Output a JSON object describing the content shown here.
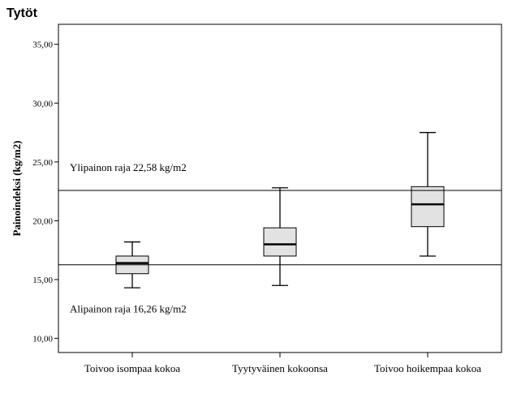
{
  "title": "Tytöt",
  "chart_data": {
    "type": "boxplot",
    "ylabel": "Painoindeksi (kg/m2)",
    "ylim": [
      8.8,
      36.7
    ],
    "yticks": [
      "10,00",
      "15,00",
      "20,00",
      "25,00",
      "30,00",
      "35,00"
    ],
    "ytick_values": [
      10,
      15,
      20,
      25,
      30,
      35
    ],
    "categories": [
      "Toivoo isompaa kokoa",
      "Tyytyväinen kokoonsa",
      "Toivoo hoikempaa kokoa"
    ],
    "boxes": [
      {
        "whisker_low": 14.3,
        "q1": 15.5,
        "median": 16.4,
        "q3": 17.0,
        "whisker_high": 18.2
      },
      {
        "whisker_low": 14.5,
        "q1": 17.0,
        "median": 18.0,
        "q3": 19.4,
        "whisker_high": 22.8
      },
      {
        "whisker_low": 17.0,
        "q1": 19.5,
        "median": 21.4,
        "q3": 22.9,
        "whisker_high": 27.5
      }
    ],
    "reference_lines": [
      {
        "value": 22.58,
        "label": "Ylipainon raja 22,58 kg/m2"
      },
      {
        "value": 16.26,
        "label": "Alipainon raja 16,26 kg/m2"
      }
    ],
    "grid": false
  }
}
